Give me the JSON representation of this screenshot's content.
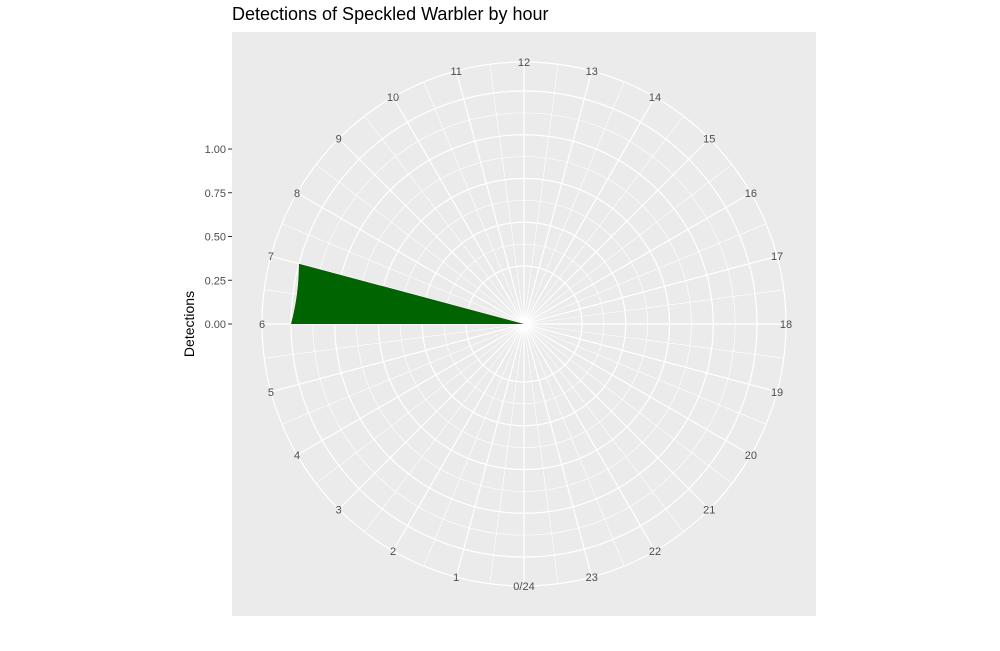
{
  "chart_data": {
    "type": "bar",
    "coord": "polar",
    "title": "Detections of Speckled Warbler by hour",
    "xlabel": "",
    "ylabel": "Detections",
    "categories": [
      "0/24",
      "1",
      "2",
      "3",
      "4",
      "5",
      "6",
      "7",
      "8",
      "9",
      "10",
      "11",
      "12",
      "13",
      "14",
      "15",
      "16",
      "17",
      "18",
      "19",
      "20",
      "21",
      "22",
      "23"
    ],
    "values": [
      0,
      0,
      0,
      0,
      0,
      0,
      1,
      0,
      0,
      0,
      0,
      0,
      0,
      0,
      0,
      0,
      0,
      0,
      0,
      0,
      0,
      0,
      0,
      0
    ],
    "ylim": [
      0,
      1
    ],
    "yticks": [
      "0.00",
      "0.25",
      "0.50",
      "0.75",
      "1.00"
    ],
    "bar_color": "#006400",
    "panel_color": "#ebebeb",
    "grid_color": "#ffffff",
    "grid": true,
    "legend": "none"
  }
}
